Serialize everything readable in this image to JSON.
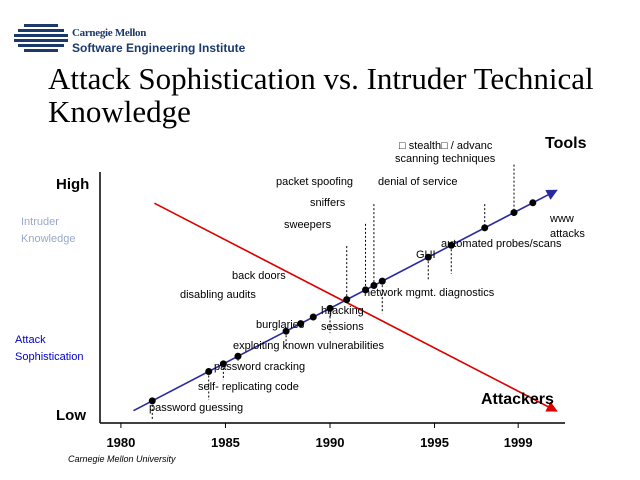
{
  "header": {
    "logo_line1": "Carnegie Mellon",
    "logo_line2": "Software Engineering Institute",
    "logo_color": "#1b3a6b"
  },
  "title": "Attack Sophistication vs. Intruder Technical Knowledge",
  "footer": "Carnegie Mellon University",
  "colors": {
    "sophistication_line": "#2a2aa0",
    "knowledge_line": "#dd0000",
    "leader_line": "#000000",
    "point": "#000000",
    "blue_label": "#0000cc",
    "faded_label": "#9aa8c8"
  },
  "chart_data": {
    "type": "line",
    "x_ticks": [
      "1980",
      "1985",
      "1990",
      "1995",
      "1999"
    ],
    "xlim": [
      1979,
      2001
    ],
    "y_labels": {
      "high": "High",
      "low": "Low"
    },
    "series": [
      {
        "name": "Attack Sophistication",
        "legend_label": "Tools",
        "x": [
          1980.6,
          2000.8
        ],
        "level": [
          0.05,
          0.94
        ],
        "points": [
          1981.5,
          1984.2,
          1984.9,
          1985.6,
          1987.9,
          1988.6,
          1989.2,
          1990,
          1990.8,
          1991.7,
          1992.1,
          1992.5,
          1994.7,
          1995.8,
          1997.4,
          1998.8,
          1999.7
        ]
      },
      {
        "name": "Intruder Knowledge",
        "legend_label": "Attackers",
        "x": [
          1981.6,
          2000.8
        ],
        "level": [
          0.89,
          0.05
        ]
      }
    ],
    "axis_side_labels": [
      {
        "id": "intruder-knowledge",
        "lines": [
          "Intruder",
          "Knowledge"
        ],
        "style": "faded"
      },
      {
        "id": "attack-sophistication",
        "lines": [
          "Attack",
          "Sophistication"
        ],
        "style": "blue"
      }
    ],
    "annotations": [
      {
        "text": "password guessing",
        "x": 1981.5,
        "level": 0.03,
        "lead": true
      },
      {
        "text": "self- replicating code",
        "x": 1984.2,
        "level": 0.11,
        "lead": true
      },
      {
        "text": "password cracking",
        "x": 1984.9,
        "level": 0.19,
        "lead": true
      },
      {
        "text": "exploiting known vulnerabilities",
        "x": 1985.6,
        "level": 0.26,
        "lead": true
      },
      {
        "text": "burglaries",
        "x": 1987.9,
        "level": 0.32,
        "lead": true
      },
      {
        "text": "disabling audits",
        "x": 1988.6,
        "level": 0.46,
        "lead": false
      },
      {
        "text": "back doors",
        "x": 1989.2,
        "level": 0.52,
        "lead": false
      },
      {
        "text": "hijacking",
        "x": 1990,
        "level": 0.38,
        "lead": true
      },
      {
        "text": "sessions",
        "x": 1990,
        "level": 0.32,
        "lead": false
      },
      {
        "text": "sweepers",
        "x": 1990.8,
        "level": 0.7,
        "lead": true
      },
      {
        "text": "sniffers",
        "x": 1991.7,
        "level": 0.79,
        "lead": true
      },
      {
        "text": "packet spoofing",
        "x": 1992.1,
        "level": 0.87,
        "lead": true
      },
      {
        "text": "network mgmt. diagnostics",
        "x": 1992.5,
        "level": 0.46,
        "lead": true
      },
      {
        "text": "GUI",
        "x": 1994.7,
        "level": 0.59,
        "lead": true
      },
      {
        "text": "denial of service",
        "x": 1997.4,
        "level": 0.87,
        "lead": true
      },
      {
        "text": "automated probes/scans",
        "x": 1995.8,
        "level": 0.62,
        "lead": true
      },
      {
        "text": "□ stealth□  / advanc",
        "x": 1998.8,
        "level": 1.03,
        "lead": true
      },
      {
        "text": "scanning techniques",
        "x": 1998.8,
        "level": 0.96,
        "lead": false
      },
      {
        "text": "www",
        "x": 2000.8,
        "level": 0.71,
        "lead": false
      },
      {
        "text": "attacks",
        "x": 2000.8,
        "level": 0.65,
        "lead": false
      }
    ]
  }
}
